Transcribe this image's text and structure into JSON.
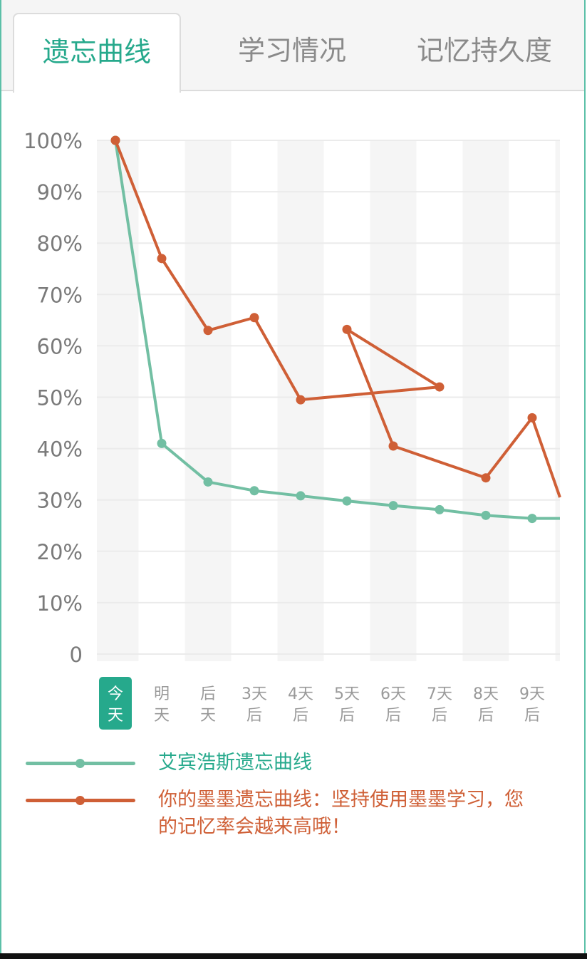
{
  "tabs": [
    {
      "label": "遗忘曲线",
      "active": true
    },
    {
      "label": "学习情况",
      "active": false
    },
    {
      "label": "记忆持久度",
      "active": false
    }
  ],
  "colors": {
    "accent": "#26a98c",
    "ebbinghaus": "#72bfa3",
    "user": "#cf5f36",
    "band": "#f5f5f5",
    "grid": "#ebebeb",
    "axis_text": "#7a7a7a"
  },
  "chart_data": {
    "type": "line",
    "ylim": [
      0,
      100
    ],
    "y_ticks": [
      "100%",
      "90%",
      "80%",
      "70%",
      "60%",
      "50%",
      "40%",
      "30%",
      "20%",
      "10%",
      "0"
    ],
    "categories": [
      {
        "top": "今",
        "bottom": "天",
        "selected": true
      },
      {
        "top": "明",
        "bottom": "天"
      },
      {
        "top": "后",
        "bottom": "天"
      },
      {
        "top": "3天",
        "bottom": "后"
      },
      {
        "top": "4天",
        "bottom": "后"
      },
      {
        "top": "5天",
        "bottom": "后"
      },
      {
        "top": "6天",
        "bottom": "后"
      },
      {
        "top": "7天",
        "bottom": "后"
      },
      {
        "top": "8天",
        "bottom": "后"
      },
      {
        "top": "9天",
        "bottom": "后"
      }
    ],
    "series": [
      {
        "name": "艾宾浩斯遗忘曲线",
        "color": "#72bfa3",
        "points": [
          {
            "x": 0,
            "y": 100
          },
          {
            "x": 1,
            "y": 41
          },
          {
            "x": 2,
            "y": 33.5
          },
          {
            "x": 3,
            "y": 31.8
          },
          {
            "x": 4,
            "y": 30.8
          },
          {
            "x": 5,
            "y": 29.8
          },
          {
            "x": 6,
            "y": 28.9
          },
          {
            "x": 7,
            "y": 28.1
          },
          {
            "x": 8,
            "y": 27
          },
          {
            "x": 9,
            "y": 26.4
          },
          {
            "x": 9.6,
            "y": 26.4,
            "marker": false
          }
        ]
      },
      {
        "name": "你的墨墨遗忘曲线：坚持使用墨墨学习，您的记忆率会越来高哦！",
        "color": "#cf5f36",
        "points": [
          {
            "x": 0,
            "y": 100
          },
          {
            "x": 1,
            "y": 77
          },
          {
            "x": 2,
            "y": 63
          },
          {
            "x": 3,
            "y": 65.5
          },
          {
            "x": 4,
            "y": 49.5
          },
          {
            "x": 7,
            "y": 52
          },
          {
            "x": 5,
            "y": 63.2
          },
          {
            "x": 6,
            "y": 40.5
          },
          {
            "x": 8,
            "y": 34.3
          },
          {
            "x": 9,
            "y": 46
          },
          {
            "x": 9.6,
            "y": 30.5,
            "marker": false
          }
        ]
      }
    ]
  },
  "legend": [
    {
      "text": "艾宾浩斯遗忘曲线"
    },
    {
      "text": "你的墨墨遗忘曲线：坚持使用墨墨学习，您",
      "text2": "的记忆率会越来高哦！"
    }
  ]
}
